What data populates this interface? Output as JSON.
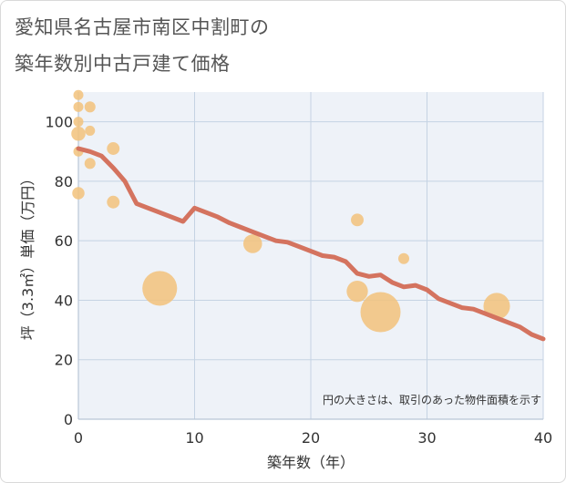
{
  "title_lines": [
    "愛知県名古屋市南区中割町の",
    "築年数別中古戸建て価格"
  ],
  "colors": {
    "line": "#d4735f",
    "bubble": "#f2c27b",
    "plot_bg": "#eef2f8",
    "grid": "#c5d3e3"
  },
  "chart_data": {
    "type": "scatter",
    "title": "愛知県名古屋市南区中割町の築年数別中古戸建て価格",
    "xlabel": "築年数（年）",
    "ylabel": "坪（3.3㎡）単価（万円）",
    "xlim": [
      0,
      40
    ],
    "ylim": [
      0,
      110
    ],
    "xticks": [
      0,
      10,
      20,
      30,
      40
    ],
    "yticks": [
      0,
      20,
      40,
      60,
      80,
      100
    ],
    "annotation": "円の大きさは、取引のあった物件面積を示す",
    "series": [
      {
        "name": "bubbles",
        "type": "scatter",
        "points": [
          {
            "x": 0,
            "y": 109,
            "size": 1
          },
          {
            "x": 0,
            "y": 105,
            "size": 1
          },
          {
            "x": 0,
            "y": 100,
            "size": 1
          },
          {
            "x": 0,
            "y": 96,
            "size": 2
          },
          {
            "x": 0,
            "y": 90,
            "size": 1
          },
          {
            "x": 0,
            "y": 76,
            "size": 1.5
          },
          {
            "x": 1,
            "y": 105,
            "size": 1.2
          },
          {
            "x": 1,
            "y": 97,
            "size": 1
          },
          {
            "x": 1,
            "y": 86,
            "size": 1.2
          },
          {
            "x": 3,
            "y": 91,
            "size": 1.6
          },
          {
            "x": 3,
            "y": 73,
            "size": 1.6
          },
          {
            "x": 7,
            "y": 44,
            "size": 12
          },
          {
            "x": 15,
            "y": 59,
            "size": 3.5
          },
          {
            "x": 24,
            "y": 67,
            "size": 1.6
          },
          {
            "x": 24,
            "y": 43,
            "size": 4.5
          },
          {
            "x": 26,
            "y": 36,
            "size": 16
          },
          {
            "x": 28,
            "y": 54,
            "size": 1.2
          },
          {
            "x": 36,
            "y": 38,
            "size": 7
          }
        ]
      },
      {
        "name": "trend",
        "type": "line",
        "x": [
          0,
          1,
          2,
          3,
          4,
          5,
          6,
          7,
          8,
          9,
          10,
          11,
          12,
          13,
          14,
          15,
          16,
          17,
          18,
          19,
          20,
          21,
          22,
          23,
          24,
          25,
          26,
          27,
          28,
          29,
          30,
          31,
          32,
          33,
          34,
          35,
          36,
          37,
          38,
          39,
          40
        ],
        "y": [
          91,
          90,
          88.5,
          84.5,
          80,
          72.5,
          71,
          69.5,
          68,
          66.5,
          71,
          69.5,
          68,
          66,
          64.5,
          63,
          61.5,
          60,
          59.5,
          58,
          56.5,
          55,
          54.5,
          53,
          49,
          48,
          48.5,
          46,
          44.5,
          45,
          43.5,
          40.5,
          39,
          37.5,
          37,
          35.5,
          34,
          32.5,
          31,
          28.5,
          27
        ]
      }
    ]
  }
}
